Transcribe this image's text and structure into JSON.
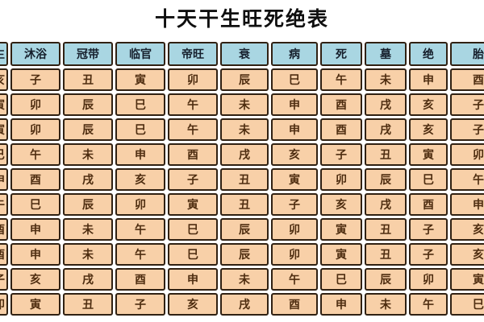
{
  "page": {
    "title": "十天干生旺死绝表"
  },
  "colors": {
    "header_bg": "#a9d6e2",
    "cell_bg": "#f8d0a8",
    "border": "#302113",
    "header_text": "#161f2c",
    "cell_text": "#4e2d10",
    "title_text": "#0f0f0f",
    "page_bg": "#ffffff"
  },
  "table": {
    "columns": [
      "长生",
      "沐浴",
      "冠带",
      "临官",
      "帝旺",
      "衰",
      "病",
      "死",
      "墓",
      "绝",
      "胎"
    ],
    "rows": [
      {
        "cells": [
          "亥",
          "子",
          "丑",
          "寅",
          "卯",
          "辰",
          "巳",
          "午",
          "未",
          "申",
          "酉"
        ]
      },
      {
        "cells": [
          "寅",
          "卯",
          "辰",
          "巳",
          "午",
          "未",
          "申",
          "酉",
          "戌",
          "亥",
          "子"
        ]
      },
      {
        "cells": [
          "寅",
          "卯",
          "辰",
          "巳",
          "午",
          "未",
          "申",
          "酉",
          "戌",
          "亥",
          "子"
        ]
      },
      {
        "cells": [
          "巳",
          "午",
          "未",
          "申",
          "酉",
          "戌",
          "亥",
          "子",
          "丑",
          "寅",
          "卯"
        ]
      },
      {
        "cells": [
          "申",
          "酉",
          "戌",
          "亥",
          "子",
          "丑",
          "寅",
          "卯",
          "辰",
          "巳",
          "午"
        ]
      },
      {
        "cells": [
          "午",
          "巳",
          "辰",
          "卯",
          "寅",
          "丑",
          "子",
          "亥",
          "戌",
          "酉",
          "申"
        ]
      },
      {
        "cells": [
          "酉",
          "申",
          "未",
          "午",
          "巳",
          "辰",
          "卯",
          "寅",
          "丑",
          "子",
          "亥"
        ]
      },
      {
        "cells": [
          "酉",
          "申",
          "未",
          "午",
          "巳",
          "辰",
          "卯",
          "寅",
          "丑",
          "子",
          "亥"
        ]
      },
      {
        "cells": [
          "子",
          "亥",
          "戌",
          "酉",
          "申",
          "未",
          "午",
          "巳",
          "辰",
          "卯",
          "寅"
        ]
      },
      {
        "cells": [
          "卯",
          "寅",
          "丑",
          "子",
          "亥",
          "戌",
          "酉",
          "申",
          "未",
          "午",
          "巳"
        ]
      }
    ]
  }
}
